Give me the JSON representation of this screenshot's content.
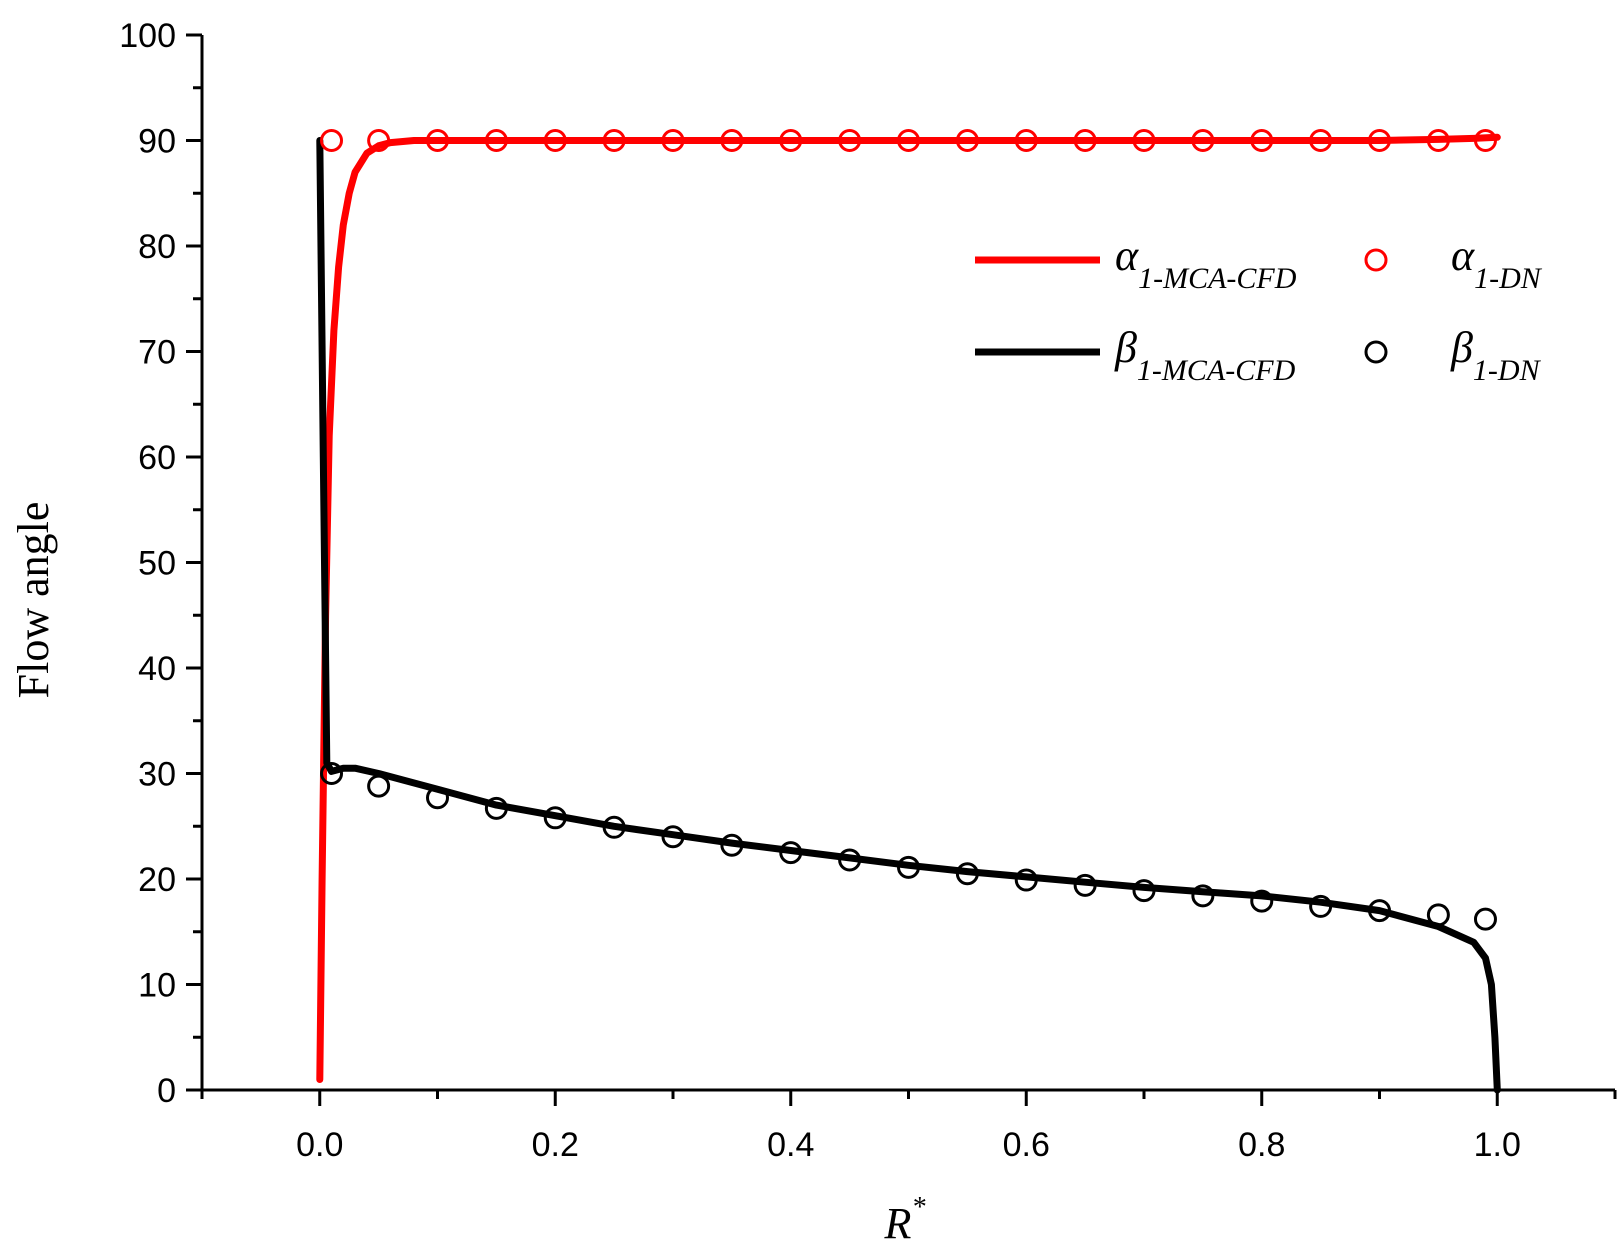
{
  "chart_data": {
    "type": "line",
    "title": "",
    "xlabel": "R",
    "xlabel_sup": "*",
    "ylabel": "Flow angle",
    "xlim": [
      -0.1,
      1.1
    ],
    "ylim": [
      0,
      100
    ],
    "x_ticks": [
      0.0,
      0.2,
      0.4,
      0.6,
      0.8,
      1.0
    ],
    "x_tick_labels": [
      "0.0",
      "0.2",
      "0.4",
      "0.6",
      "0.8",
      "1.0"
    ],
    "y_ticks": [
      0,
      10,
      20,
      30,
      40,
      50,
      60,
      70,
      80,
      90,
      100
    ],
    "y_tick_labels": [
      "0",
      "10",
      "20",
      "30",
      "40",
      "50",
      "60",
      "70",
      "80",
      "90",
      "100"
    ],
    "grid": false,
    "legend_position": "top-right",
    "series": [
      {
        "symbol": "α",
        "subscript": "1-MCA-CFD",
        "style": "line",
        "color": "#ff0000",
        "x": [
          0.0,
          0.002,
          0.005,
          0.008,
          0.012,
          0.016,
          0.02,
          0.025,
          0.03,
          0.04,
          0.05,
          0.06,
          0.08,
          0.1,
          0.2,
          0.3,
          0.4,
          0.5,
          0.6,
          0.7,
          0.8,
          0.9,
          0.95,
          0.98,
          1.0
        ],
        "y": [
          1,
          20,
          45,
          62,
          72,
          78,
          82,
          85,
          87,
          88.8,
          89.5,
          89.8,
          90,
          90,
          90,
          90,
          90,
          90,
          90,
          90,
          90,
          90,
          90.1,
          90.2,
          90.3
        ]
      },
      {
        "symbol": "α",
        "subscript": "1-DN",
        "style": "markers",
        "color": "#ff0000",
        "x": [
          0.01,
          0.05,
          0.1,
          0.15,
          0.2,
          0.25,
          0.3,
          0.35,
          0.4,
          0.45,
          0.5,
          0.55,
          0.6,
          0.65,
          0.7,
          0.75,
          0.8,
          0.85,
          0.9,
          0.95,
          0.99
        ],
        "y": [
          90,
          90,
          90,
          90,
          90,
          90,
          90,
          90,
          90,
          90,
          90,
          90,
          90,
          90,
          90,
          90,
          90,
          90,
          90,
          90,
          90
        ]
      },
      {
        "symbol": "β",
        "subscript": "1-MCA-CFD",
        "style": "line",
        "color": "#000000",
        "x": [
          0.0,
          0.003,
          0.006,
          0.01,
          0.02,
          0.03,
          0.05,
          0.1,
          0.15,
          0.2,
          0.25,
          0.3,
          0.35,
          0.4,
          0.45,
          0.5,
          0.55,
          0.6,
          0.65,
          0.7,
          0.75,
          0.8,
          0.85,
          0.9,
          0.95,
          0.98,
          0.99,
          0.995,
          0.998,
          1.0
        ],
        "y": [
          90,
          60,
          31,
          30.2,
          30.5,
          30.5,
          30,
          28.5,
          27,
          26,
          25,
          24.2,
          23.4,
          22.7,
          22,
          21.3,
          20.7,
          20.2,
          19.7,
          19.2,
          18.8,
          18.4,
          17.8,
          17,
          15.5,
          14,
          12.5,
          10,
          5,
          0
        ]
      },
      {
        "symbol": "β",
        "subscript": "1-DN",
        "style": "markers",
        "color": "#000000",
        "x": [
          0.01,
          0.05,
          0.1,
          0.15,
          0.2,
          0.25,
          0.3,
          0.35,
          0.4,
          0.45,
          0.5,
          0.55,
          0.6,
          0.65,
          0.7,
          0.75,
          0.8,
          0.85,
          0.9,
          0.95,
          0.99
        ],
        "y": [
          30,
          28.8,
          27.7,
          26.7,
          25.8,
          24.9,
          24,
          23.2,
          22.5,
          21.8,
          21.1,
          20.5,
          19.9,
          19.4,
          18.9,
          18.4,
          17.9,
          17.4,
          17,
          16.6,
          16.2
        ]
      }
    ]
  }
}
